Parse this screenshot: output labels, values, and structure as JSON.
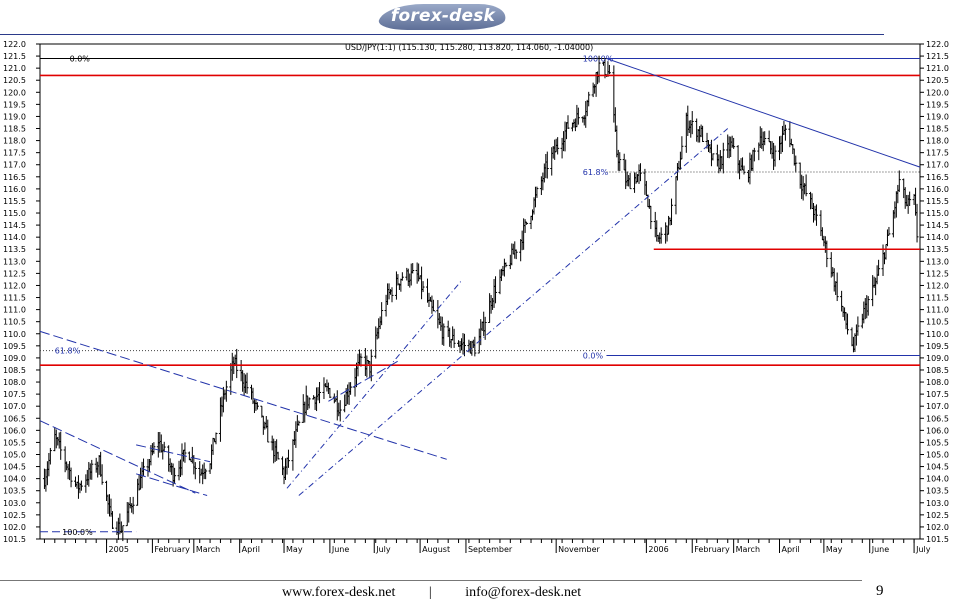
{
  "brand": {
    "logo_text": "forex-desk"
  },
  "footer": {
    "website": "www.forex-desk.net",
    "separator": "|",
    "email": "info@forex-desk.net",
    "page_number": "9"
  },
  "colors": {
    "ohlc": "#000000",
    "support_resistance": "#e00000",
    "trendline": "#2233aa",
    "fib_dotted": "#444444"
  },
  "chart_data": {
    "type": "ohlc",
    "title": "USD/JPY(1:1) (115.130, 115.280, 113.820, 114.060, -1.04000)",
    "instrument": "USD/JPY",
    "last_bar": {
      "open": 115.13,
      "high": 115.28,
      "low": 113.82,
      "close": 114.06,
      "change": -1.04
    },
    "ylim": [
      101.5,
      122.0
    ],
    "y_tick_step": 0.5,
    "y_tick_labels": [
      "122.0",
      "121.5",
      "121.0",
      "120.5",
      "120.0",
      "119.5",
      "119.0",
      "118.5",
      "118.0",
      "117.5",
      "117.0",
      "116.5",
      "116.0",
      "115.5",
      "115.0",
      "114.5",
      "114.0",
      "113.5",
      "113.0",
      "112.5",
      "112.0",
      "111.5",
      "111.0",
      "110.5",
      "110.0",
      "109.5",
      "109.0",
      "108.5",
      "108.0",
      "107.5",
      "107.0",
      "106.5",
      "106.0",
      "105.5",
      "105.0",
      "104.5",
      "104.0",
      "103.5",
      "103.0",
      "102.5",
      "102.0",
      "101.5"
    ],
    "x_labels": [
      "2005",
      "February",
      "March",
      "April",
      "May",
      "June",
      "July",
      "August",
      "September",
      "November",
      "2006",
      "February",
      "March",
      "April",
      "May",
      "June",
      "July"
    ],
    "x_label_days": [
      0,
      31,
      59,
      90,
      120,
      151,
      181,
      212,
      243,
      304,
      365,
      396,
      424,
      455,
      485,
      516,
      546
    ],
    "x_range_days": [
      -45,
      550
    ],
    "anchors": [
      {
        "day": -42,
        "price": 104.0
      },
      {
        "day": -35,
        "price": 105.7
      },
      {
        "day": -20,
        "price": 103.6
      },
      {
        "day": -5,
        "price": 104.7
      },
      {
        "day": 3,
        "price": 102.3
      },
      {
        "day": 10,
        "price": 101.9
      },
      {
        "day": 22,
        "price": 103.8
      },
      {
        "day": 35,
        "price": 105.6
      },
      {
        "day": 45,
        "price": 104.2
      },
      {
        "day": 55,
        "price": 105.2
      },
      {
        "day": 63,
        "price": 104.2
      },
      {
        "day": 70,
        "price": 104.8
      },
      {
        "day": 80,
        "price": 107.6
      },
      {
        "day": 86,
        "price": 108.8
      },
      {
        "day": 95,
        "price": 107.8
      },
      {
        "day": 110,
        "price": 105.6
      },
      {
        "day": 120,
        "price": 104.2
      },
      {
        "day": 135,
        "price": 107.2
      },
      {
        "day": 150,
        "price": 107.7
      },
      {
        "day": 158,
        "price": 106.9
      },
      {
        "day": 172,
        "price": 108.9
      },
      {
        "day": 178,
        "price": 108.6
      },
      {
        "day": 188,
        "price": 111.4
      },
      {
        "day": 200,
        "price": 112.4
      },
      {
        "day": 210,
        "price": 112.4
      },
      {
        "day": 218,
        "price": 111.2
      },
      {
        "day": 228,
        "price": 110.0
      },
      {
        "day": 238,
        "price": 109.6
      },
      {
        "day": 250,
        "price": 109.4
      },
      {
        "day": 262,
        "price": 111.8
      },
      {
        "day": 280,
        "price": 113.9
      },
      {
        "day": 298,
        "price": 117.0
      },
      {
        "day": 312,
        "price": 118.6
      },
      {
        "day": 323,
        "price": 119.2
      },
      {
        "day": 333,
        "price": 121.1
      },
      {
        "day": 340,
        "price": 120.8
      },
      {
        "day": 345,
        "price": 117.5
      },
      {
        "day": 352,
        "price": 116.2
      },
      {
        "day": 360,
        "price": 116.6
      },
      {
        "day": 365,
        "price": 115.8
      },
      {
        "day": 372,
        "price": 113.8
      },
      {
        "day": 380,
        "price": 114.5
      },
      {
        "day": 392,
        "price": 118.8
      },
      {
        "day": 402,
        "price": 118.3
      },
      {
        "day": 412,
        "price": 116.9
      },
      {
        "day": 422,
        "price": 117.8
      },
      {
        "day": 432,
        "price": 116.4
      },
      {
        "day": 442,
        "price": 118.2
      },
      {
        "day": 452,
        "price": 117.4
      },
      {
        "day": 460,
        "price": 118.6
      },
      {
        "day": 468,
        "price": 116.5
      },
      {
        "day": 478,
        "price": 115.1
      },
      {
        "day": 485,
        "price": 113.8
      },
      {
        "day": 492,
        "price": 112.2
      },
      {
        "day": 500,
        "price": 110.4
      },
      {
        "day": 505,
        "price": 109.4
      },
      {
        "day": 510,
        "price": 110.6
      },
      {
        "day": 520,
        "price": 112.1
      },
      {
        "day": 530,
        "price": 114.3
      },
      {
        "day": 536,
        "price": 116.3
      },
      {
        "day": 541,
        "price": 115.3
      },
      {
        "day": 546,
        "price": 115.5
      },
      {
        "day": 548,
        "price": 114.1
      }
    ],
    "horizontal_levels": [
      {
        "name": "resistance",
        "price": 120.7,
        "style": "solid",
        "color": "#e00000",
        "from_day": -45,
        "to_day": 550
      },
      {
        "name": "support-upper",
        "price": 113.5,
        "style": "solid",
        "color": "#e00000",
        "from_day": 370,
        "to_day": 550
      },
      {
        "name": "support-lower",
        "price": 108.7,
        "style": "solid",
        "color": "#e00000",
        "from_day": -45,
        "to_day": 550
      }
    ],
    "fibonacci": [
      {
        "label": "0.0%",
        "price": 121.4,
        "from_day": -45,
        "to_day": 338,
        "label_day": -25,
        "style": "solid-dark"
      },
      {
        "label": "100.0%",
        "price": 121.4,
        "from_day": 338,
        "to_day": 550,
        "label_day": 322,
        "style": "solid-blue"
      },
      {
        "label": "61.8%",
        "price": 116.7,
        "from_day": 338,
        "to_day": 550,
        "label_day": 322,
        "style": "dotted"
      },
      {
        "label": "0.0%",
        "price": 109.1,
        "from_day": 338,
        "to_day": 550,
        "label_day": 322,
        "style": "solid-blue"
      },
      {
        "label": "61.8%",
        "price": 109.3,
        "from_day": -45,
        "to_day": 338,
        "label_day": -35,
        "style": "dotted"
      },
      {
        "label": "100.0%",
        "price": 101.8,
        "from_day": -45,
        "to_day": 20,
        "label_day": -30,
        "style": "dashed"
      }
    ],
    "trendlines": [
      {
        "name": "long-term-downtrend",
        "style": "solid",
        "from": [
          338,
          121.4
        ],
        "to": [
          550,
          116.9
        ]
      },
      {
        "name": "uptrend-support",
        "style": "dashdot",
        "from": [
          130,
          103.3
        ],
        "to": [
          420,
          118.5
        ]
      },
      {
        "name": "uptrend-steep",
        "style": "dashdot",
        "from": [
          122,
          103.6
        ],
        "to": [
          240,
          112.2
        ]
      },
      {
        "name": "downtrend-channel-upper",
        "style": "dashed",
        "from": [
          -45,
          110.1
        ],
        "to": [
          230,
          104.8
        ]
      },
      {
        "name": "downtrend-channel-lower",
        "style": "dashed",
        "from": [
          -45,
          106.4
        ],
        "to": [
          60,
          103.4
        ]
      },
      {
        "name": "flag-upper",
        "style": "dashed",
        "from": [
          20,
          105.4
        ],
        "to": [
          70,
          104.7
        ]
      },
      {
        "name": "flag-lower",
        "style": "dashed",
        "from": [
          20,
          104.2
        ],
        "to": [
          68,
          103.3
        ]
      },
      {
        "name": "rise-line",
        "style": "dashed",
        "from": [
          150,
          107.2
        ],
        "to": [
          198,
          108.9
        ]
      }
    ]
  }
}
